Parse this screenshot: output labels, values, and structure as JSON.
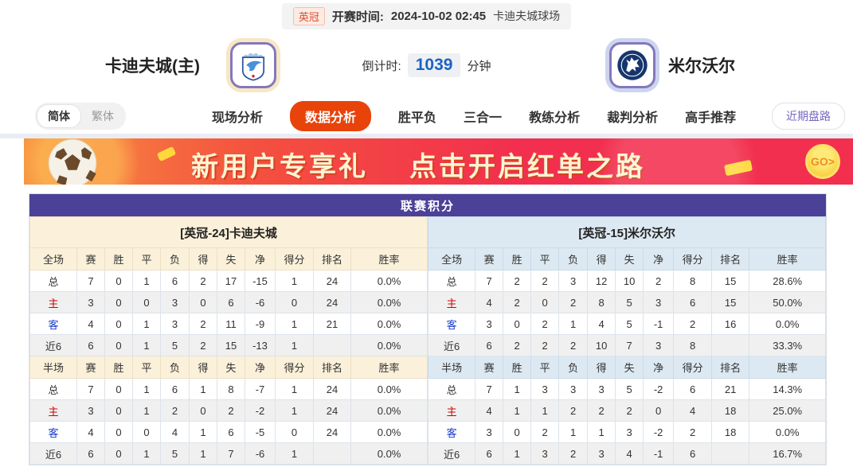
{
  "top_bar": {
    "league": "英冠",
    "kickoff_label": "开赛时间:",
    "kickoff_time": "2024-10-02 02:45",
    "venue": "卡迪夫城球场"
  },
  "header": {
    "home_team": "卡迪夫城(主)",
    "away_team": "米尔沃尔",
    "countdown_label": "倒计时:",
    "countdown_value": "1039",
    "countdown_unit": "分钟"
  },
  "nav": {
    "lang": {
      "simplified": "简体",
      "traditional": "繁体"
    },
    "tabs": [
      {
        "label": "现场分析",
        "active": false
      },
      {
        "label": "数据分析",
        "active": true
      },
      {
        "label": "胜平负",
        "active": false
      },
      {
        "label": "三合一",
        "active": false
      },
      {
        "label": "教练分析",
        "active": false
      },
      {
        "label": "裁判分析",
        "active": false
      },
      {
        "label": "高手推荐",
        "active": false
      }
    ],
    "trend_button": "近期盘路"
  },
  "banner": {
    "headline_part1": "新用户专享礼",
    "headline_part2": "点击开启红单之路",
    "go_label": "GO>"
  },
  "league_table": {
    "title": "联赛积分",
    "columns": [
      "赛",
      "胜",
      "平",
      "负",
      "得",
      "失",
      "净",
      "得分",
      "排名",
      "胜率"
    ],
    "teams": [
      {
        "side": "home",
        "header": "[英冠-24]卡迪夫城",
        "sections": [
          {
            "scope": "全场",
            "rows": [
              {
                "label": "总",
                "type": "total",
                "values": [
                  "7",
                  "0",
                  "1",
                  "6",
                  "2",
                  "17",
                  "-15",
                  "1",
                  "24",
                  "0.0%"
                ]
              },
              {
                "label": "主",
                "type": "home",
                "values": [
                  "3",
                  "0",
                  "0",
                  "3",
                  "0",
                  "6",
                  "-6",
                  "0",
                  "24",
                  "0.0%"
                ]
              },
              {
                "label": "客",
                "type": "away",
                "values": [
                  "4",
                  "0",
                  "1",
                  "3",
                  "2",
                  "11",
                  "-9",
                  "1",
                  "21",
                  "0.0%"
                ]
              },
              {
                "label": "近6",
                "type": "recent",
                "values": [
                  "6",
                  "0",
                  "1",
                  "5",
                  "2",
                  "15",
                  "-13",
                  "1",
                  "",
                  "0.0%"
                ]
              }
            ]
          },
          {
            "scope": "半场",
            "rows": [
              {
                "label": "总",
                "type": "total",
                "values": [
                  "7",
                  "0",
                  "1",
                  "6",
                  "1",
                  "8",
                  "-7",
                  "1",
                  "24",
                  "0.0%"
                ]
              },
              {
                "label": "主",
                "type": "home",
                "values": [
                  "3",
                  "0",
                  "1",
                  "2",
                  "0",
                  "2",
                  "-2",
                  "1",
                  "24",
                  "0.0%"
                ]
              },
              {
                "label": "客",
                "type": "away",
                "values": [
                  "4",
                  "0",
                  "0",
                  "4",
                  "1",
                  "6",
                  "-5",
                  "0",
                  "24",
                  "0.0%"
                ]
              },
              {
                "label": "近6",
                "type": "recent",
                "values": [
                  "6",
                  "0",
                  "1",
                  "5",
                  "1",
                  "7",
                  "-6",
                  "1",
                  "",
                  "0.0%"
                ]
              }
            ]
          }
        ]
      },
      {
        "side": "away",
        "header": "[英冠-15]米尔沃尔",
        "sections": [
          {
            "scope": "全场",
            "rows": [
              {
                "label": "总",
                "type": "total",
                "values": [
                  "7",
                  "2",
                  "2",
                  "3",
                  "12",
                  "10",
                  "2",
                  "8",
                  "15",
                  "28.6%"
                ]
              },
              {
                "label": "主",
                "type": "home",
                "values": [
                  "4",
                  "2",
                  "0",
                  "2",
                  "8",
                  "5",
                  "3",
                  "6",
                  "15",
                  "50.0%"
                ]
              },
              {
                "label": "客",
                "type": "away",
                "values": [
                  "3",
                  "0",
                  "2",
                  "1",
                  "4",
                  "5",
                  "-1",
                  "2",
                  "16",
                  "0.0%"
                ]
              },
              {
                "label": "近6",
                "type": "recent",
                "values": [
                  "6",
                  "2",
                  "2",
                  "2",
                  "10",
                  "7",
                  "3",
                  "8",
                  "",
                  "33.3%"
                ]
              }
            ]
          },
          {
            "scope": "半场",
            "rows": [
              {
                "label": "总",
                "type": "total",
                "values": [
                  "7",
                  "1",
                  "3",
                  "3",
                  "3",
                  "5",
                  "-2",
                  "6",
                  "21",
                  "14.3%"
                ]
              },
              {
                "label": "主",
                "type": "home",
                "values": [
                  "4",
                  "1",
                  "1",
                  "2",
                  "2",
                  "2",
                  "0",
                  "4",
                  "18",
                  "25.0%"
                ]
              },
              {
                "label": "客",
                "type": "away",
                "values": [
                  "3",
                  "0",
                  "2",
                  "1",
                  "1",
                  "3",
                  "-2",
                  "2",
                  "18",
                  "0.0%"
                ]
              },
              {
                "label": "近6",
                "type": "recent",
                "values": [
                  "6",
                  "1",
                  "3",
                  "2",
                  "3",
                  "4",
                  "-1",
                  "6",
                  "",
                  "16.7%"
                ]
              }
            ]
          }
        ]
      }
    ]
  },
  "colors": {
    "accent_orange": "#e8430b",
    "title_purple": "#4c4199",
    "home_header_bg": "#fbf0d9",
    "away_header_bg": "#dde9f2",
    "countdown_blue": "#1b62c4",
    "home_row_red": "#d40000",
    "away_row_blue": "#1a3bcc"
  }
}
